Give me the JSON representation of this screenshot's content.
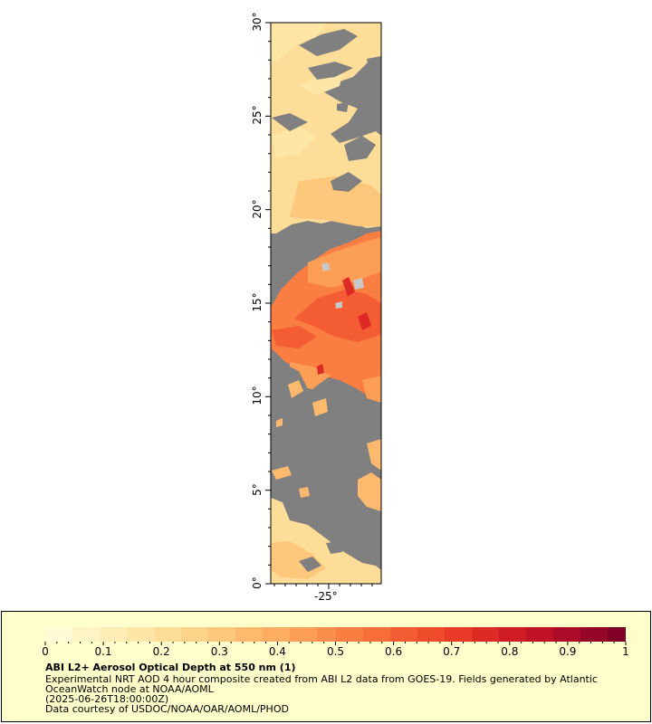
{
  "map": {
    "lat_labels": [
      "30°",
      "25°",
      "20°",
      "15°",
      "10°",
      "5°",
      "0°"
    ],
    "lon_labels": [
      "-25°"
    ],
    "lat_range": [
      0,
      30
    ],
    "colors": {
      "no_data": "#808080",
      "land": "#c8c8c8",
      "low_aod": "#fee8a8",
      "mid_aod": "#fdb55a",
      "high_aod": "#f2502a",
      "max_aod": "#870a2a"
    }
  },
  "legend": {
    "title": "ABI L2+ Aerosol Optical Depth at 550 nm (1)",
    "description": "Experimental NRT AOD 4 hour composite created from ABI L2 data from GOES-19. Fields generated by Atlantic OceanWatch node at NOAA/AOML",
    "timestamp": "(2025-06-26T18:00:00Z)",
    "credit": "Data courtesy of USDOC/NOAA/OAR/AOML/PHOD",
    "tick_labels": [
      "0",
      "0.1",
      "0.2",
      "0.3",
      "0.4",
      "0.5",
      "0.6",
      "0.7",
      "0.8",
      "0.9",
      "1"
    ],
    "range": [
      0,
      1
    ],
    "colorbar_colors": [
      "#fffbd6",
      "#fff4c6",
      "#feedb6",
      "#fee6a6",
      "#fedd98",
      "#fdd38a",
      "#fdc77c",
      "#fdba6e",
      "#fcad62",
      "#fc9e56",
      "#fb8e4c",
      "#fa7e42",
      "#f86e3a",
      "#f45d33",
      "#ef4c2c",
      "#e83a27",
      "#dd2a24",
      "#cf1c24",
      "#bf1227",
      "#ab0a29",
      "#950528",
      "#800026"
    ]
  }
}
